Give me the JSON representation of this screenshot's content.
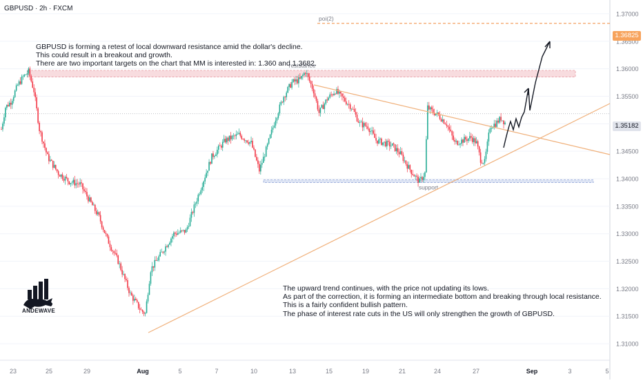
{
  "header": {
    "title": "GBPUSD · 2h · FXCM"
  },
  "notes": {
    "top": "GBPUSD is forming a retest of local downward resistance amid the dollar's decline.\nThis could result in a breakout and growth.\nThere are two important targets on the chart that MM is interested in: 1.360 and 1.3682.",
    "bottom": "The upward trend continues, with the price not updating its lows.\nAs part of the correction, it is forming an intermediate bottom and breaking through local resistance.\nThis is a fairly confident bullish pattern.\nThe phase of interest rate cuts in the US will only strengthen the growth of GBPUSD."
  },
  "logo": {
    "text": "ANDEWAVE"
  },
  "colors": {
    "up": "#22ab94",
    "down": "#f23645",
    "zone_resistance": "#f5cdd1",
    "zone_support": "#cfd8ef",
    "trendline": "#f0b07a",
    "poi": "#f08a3c",
    "axis_text": "#787b86",
    "grid": "#f0f3fa"
  },
  "chart_data": {
    "type": "candlestick",
    "symbol": "GBPUSD",
    "timeframe": "2h",
    "broker": "FXCM",
    "x_tick_labels": [
      "23",
      "25",
      "29",
      "Aug",
      "5",
      "7",
      "10",
      "13",
      "15",
      "19",
      "21",
      "24",
      "27",
      "Sep",
      "3",
      "5"
    ],
    "y_tick_labels": [
      "1.37000",
      "1.36500",
      "1.36000",
      "1.35500",
      "1.35000",
      "1.34500",
      "1.34000",
      "1.33500",
      "1.33000",
      "1.32500",
      "1.32000",
      "1.31500",
      "1.31000"
    ],
    "ylim": [
      1.307,
      1.3725
    ],
    "current_price": "1.35182",
    "poi_price": "1.36825",
    "annotations": {
      "poi": "poi(2)",
      "resistance": "resistance",
      "support": "support"
    },
    "resistance_zone": [
      1.3585,
      1.3597
    ],
    "support_zone": [
      1.3393,
      1.3398
    ],
    "path_key_points": [
      [
        0,
        1.349
      ],
      [
        3,
        1.353
      ],
      [
        7,
        1.354
      ],
      [
        12,
        1.357
      ],
      [
        16,
        1.3585
      ],
      [
        20,
        1.3595
      ],
      [
        24,
        1.356
      ],
      [
        28,
        1.349
      ],
      [
        34,
        1.344
      ],
      [
        42,
        1.341
      ],
      [
        50,
        1.3395
      ],
      [
        58,
        1.339
      ],
      [
        65,
        1.336
      ],
      [
        72,
        1.333
      ],
      [
        78,
        1.329
      ],
      [
        86,
        1.325
      ],
      [
        95,
        1.319
      ],
      [
        103,
        1.316
      ],
      [
        106,
        1.3155
      ],
      [
        110,
        1.3235
      ],
      [
        118,
        1.3265
      ],
      [
        127,
        1.33
      ],
      [
        136,
        1.3305
      ],
      [
        145,
        1.337
      ],
      [
        155,
        1.344
      ],
      [
        165,
        1.347
      ],
      [
        175,
        1.348
      ],
      [
        184,
        1.3465
      ],
      [
        190,
        1.3415
      ],
      [
        196,
        1.346
      ],
      [
        202,
        1.351
      ],
      [
        208,
        1.355
      ],
      [
        214,
        1.3575
      ],
      [
        220,
        1.358
      ],
      [
        224,
        1.3595
      ],
      [
        230,
        1.356
      ],
      [
        234,
        1.352
      ],
      [
        240,
        1.3545
      ],
      [
        246,
        1.356
      ],
      [
        252,
        1.3545
      ],
      [
        258,
        1.353
      ],
      [
        264,
        1.35
      ],
      [
        270,
        1.3495
      ],
      [
        276,
        1.347
      ],
      [
        282,
        1.3465
      ],
      [
        288,
        1.346
      ],
      [
        294,
        1.3445
      ],
      [
        300,
        1.342
      ],
      [
        306,
        1.34
      ],
      [
        308,
        1.3395
      ],
      [
        312,
        1.341
      ],
      [
        314,
        1.353
      ],
      [
        316,
        1.3525
      ],
      [
        322,
        1.3515
      ],
      [
        328,
        1.35
      ],
      [
        334,
        1.3465
      ],
      [
        340,
        1.347
      ],
      [
        346,
        1.3475
      ],
      [
        350,
        1.3465
      ],
      [
        353,
        1.3435
      ],
      [
        356,
        1.343
      ],
      [
        360,
        1.3495
      ],
      [
        364,
        1.35
      ],
      [
        368,
        1.351
      ],
      [
        371,
        1.3502
      ]
    ]
  }
}
